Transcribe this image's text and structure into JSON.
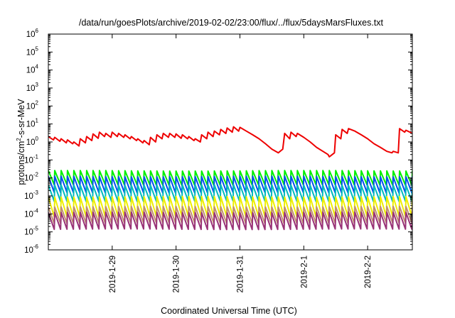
{
  "chart_data": {
    "type": "line",
    "title": "/data/run/goesPlots/archive/2019-02-02/23:00/flux/../flux/5daysMarsFluxes.txt",
    "xlabel": "Coordinated Universal Time (UTC)",
    "ylabel": "protons/cm2-s-sr-MeV",
    "y_scale": "log",
    "ylim": [
      1e-06,
      1000000.0
    ],
    "y_ticks": [
      {
        "base": "10",
        "exp": "-6"
      },
      {
        "base": "10",
        "exp": "-5"
      },
      {
        "base": "10",
        "exp": "-4"
      },
      {
        "base": "10",
        "exp": "-3"
      },
      {
        "base": "10",
        "exp": "-2"
      },
      {
        "base": "10",
        "exp": "-1"
      },
      {
        "base": "10",
        "exp": "0"
      },
      {
        "base": "10",
        "exp": "1"
      },
      {
        "base": "10",
        "exp": "2"
      },
      {
        "base": "10",
        "exp": "3"
      },
      {
        "base": "10",
        "exp": "4"
      },
      {
        "base": "10",
        "exp": "5"
      },
      {
        "base": "10",
        "exp": "6"
      }
    ],
    "xlim_days": [
      0,
      5.7
    ],
    "x_ticks": [
      {
        "label": "2019-1-29",
        "day": 1.0
      },
      {
        "label": "2019-1-30",
        "day": 2.0
      },
      {
        "label": "2019-1-31",
        "day": 3.0
      },
      {
        "label": "2019-2-1",
        "day": 4.0
      },
      {
        "label": "2019-2-2",
        "day": 5.0
      }
    ],
    "grid": false,
    "legend": "none",
    "series": [
      {
        "color": "#ee0000",
        "x": [
          0.0,
          0.08,
          0.1,
          0.18,
          0.2,
          0.28,
          0.3,
          0.38,
          0.4,
          0.48,
          0.5,
          0.58,
          0.6,
          0.68,
          0.7,
          0.78,
          0.8,
          0.88,
          0.9,
          0.98,
          1.0,
          1.08,
          1.1,
          1.18,
          1.2,
          1.28,
          1.3,
          1.38,
          1.4,
          1.48,
          1.5,
          1.58,
          1.6,
          1.68,
          1.7,
          1.78,
          1.8,
          1.88,
          1.9,
          1.98,
          2.0,
          2.08,
          2.1,
          2.18,
          2.2,
          2.28,
          2.3,
          2.38,
          2.4,
          2.48,
          2.5,
          2.58,
          2.6,
          2.68,
          2.7,
          2.78,
          2.8,
          2.88,
          2.9,
          2.98,
          3.0,
          3.1,
          3.2,
          3.3,
          3.4,
          3.5,
          3.6,
          3.67,
          3.7,
          3.78,
          3.8,
          3.88,
          3.9,
          4.0,
          4.1,
          4.2,
          4.3,
          4.38,
          4.4,
          4.48,
          4.5,
          4.58,
          4.6,
          4.68,
          4.7,
          4.8,
          4.9,
          5.0,
          5.1,
          5.2,
          5.3,
          5.38,
          5.4,
          5.48,
          5.5,
          5.58,
          5.6,
          5.7
        ],
        "y": [
          2.0,
          1.3,
          1.8,
          1.1,
          1.5,
          0.9,
          1.3,
          0.8,
          1.0,
          0.6,
          1.5,
          0.9,
          2.0,
          1.2,
          2.8,
          1.6,
          3.5,
          2.0,
          3.0,
          1.8,
          3.5,
          2.0,
          3.0,
          1.8,
          2.5,
          1.5,
          2.0,
          1.2,
          1.5,
          0.9,
          1.2,
          0.7,
          1.8,
          1.0,
          2.5,
          1.5,
          3.0,
          1.8,
          3.0,
          1.8,
          2.8,
          1.6,
          2.5,
          1.5,
          2.0,
          1.2,
          1.5,
          1.0,
          2.5,
          1.5,
          3.5,
          2.0,
          4.0,
          2.5,
          5.0,
          3.0,
          6.0,
          3.5,
          7.0,
          4.0,
          6.5,
          4.0,
          2.5,
          1.5,
          0.8,
          0.4,
          0.25,
          0.4,
          3.0,
          1.5,
          3.5,
          2.0,
          3.0,
          1.8,
          1.0,
          0.5,
          0.3,
          0.2,
          0.15,
          0.25,
          2.5,
          1.5,
          5.0,
          3.0,
          5.5,
          4.0,
          2.5,
          1.5,
          0.8,
          0.5,
          0.3,
          0.25,
          0.3,
          0.25,
          5.5,
          3.5,
          4.5,
          3.0
        ]
      },
      {
        "color": "#00ee00",
        "sawtooth": true,
        "period_days": 0.1,
        "peak": 0.025,
        "trough": 0.004
      },
      {
        "color": "#0050ee",
        "sawtooth": true,
        "period_days": 0.1,
        "peak": 0.012,
        "trough": 0.0015
      },
      {
        "color": "#00bbbb",
        "sawtooth": true,
        "period_days": 0.1,
        "peak": 0.004,
        "trough": 0.0005
      },
      {
        "color": "#eeee00",
        "sawtooth": true,
        "period_days": 0.1,
        "peak": 0.0009,
        "trough": 7e-05
      },
      {
        "color": "#c09070",
        "sawtooth": true,
        "period_days": 0.1,
        "peak": 0.00025,
        "trough": 3e-05
      },
      {
        "color": "#993377",
        "sawtooth": true,
        "period_days": 0.1,
        "peak": 0.00012,
        "trough": 1.4e-05
      }
    ]
  }
}
